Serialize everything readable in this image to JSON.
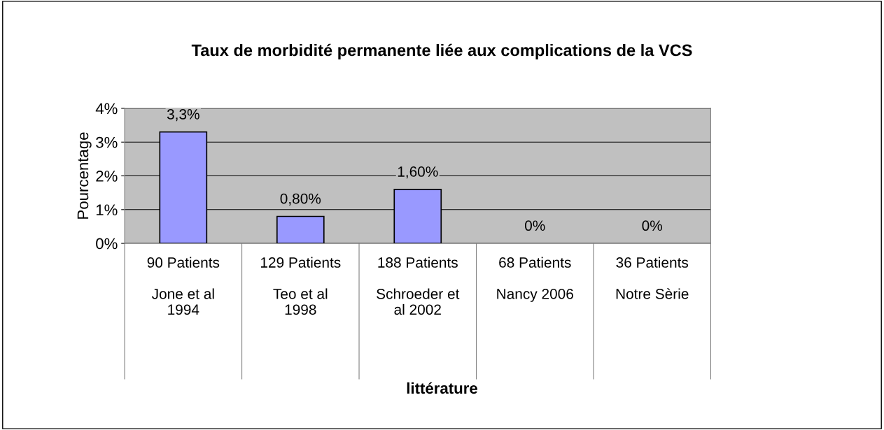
{
  "chart_data": {
    "type": "bar",
    "title": "Taux de morbidité permanente liée aux complications de la VCS",
    "annotations": [
      "littérature"
    ],
    "ylabel": "Pourcentage",
    "categories": [
      "90 Patients\n\nJone et al\n1994",
      "129 Patients\n\nTeo et al\n1998",
      "188 Patients\n\nSchroeder et\nal 2002",
      "68 Patients\n\nNancy 2006",
      "36 Patients\n\nNotre Sèrie"
    ],
    "values": [
      3.3,
      0.8,
      1.6,
      0,
      0
    ],
    "value_labels": [
      "3,3%",
      "0,80%",
      "1,60%",
      "0%",
      "0%"
    ],
    "color": "#9999ff",
    "ylim": [
      0,
      4
    ],
    "yticks": [
      {
        "value": 0,
        "label": "0%"
      },
      {
        "value": 1,
        "label": "1%"
      },
      {
        "value": 2,
        "label": "2%"
      },
      {
        "value": 3,
        "label": "3%"
      },
      {
        "value": 4,
        "label": "4%"
      }
    ],
    "grid": "y",
    "legend": false
  }
}
